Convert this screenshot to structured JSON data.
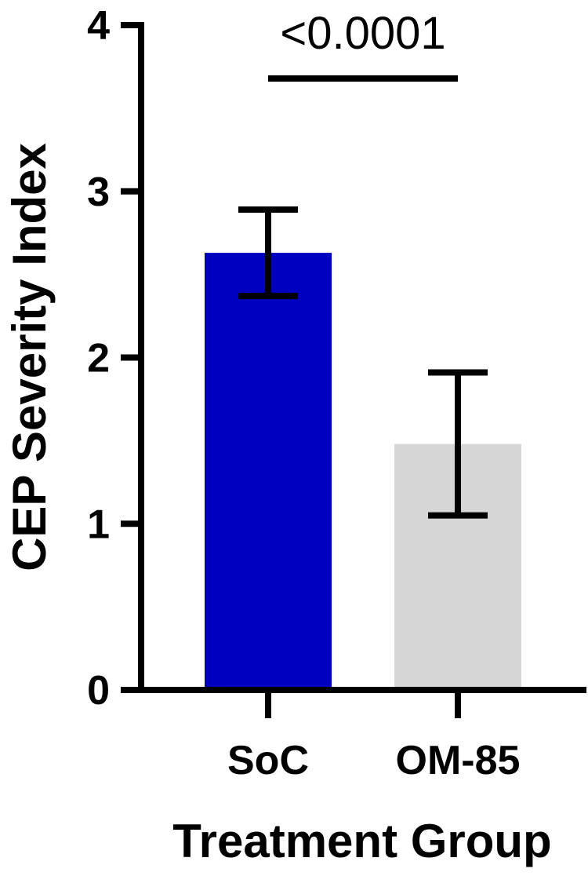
{
  "chart_data": {
    "type": "bar",
    "categories": [
      "SoC",
      "OM-85"
    ],
    "values": [
      2.63,
      1.48
    ],
    "error_bars": [
      {
        "low": 2.37,
        "high": 2.89
      },
      {
        "low": 1.05,
        "high": 1.91
      }
    ],
    "colors": [
      "#0000c0",
      "#d6d6d6"
    ],
    "xlabel": "Treatment Group",
    "ylabel": "CEP Severity Index",
    "ylim": [
      0,
      4
    ],
    "yticks": [
      0,
      1,
      2,
      3,
      4
    ],
    "ytick_labels": [
      "0",
      "1",
      "2",
      "3",
      "4"
    ],
    "significance": {
      "label": "<0.0001",
      "between": [
        0,
        1
      ]
    },
    "grid": false,
    "legend": "none"
  }
}
